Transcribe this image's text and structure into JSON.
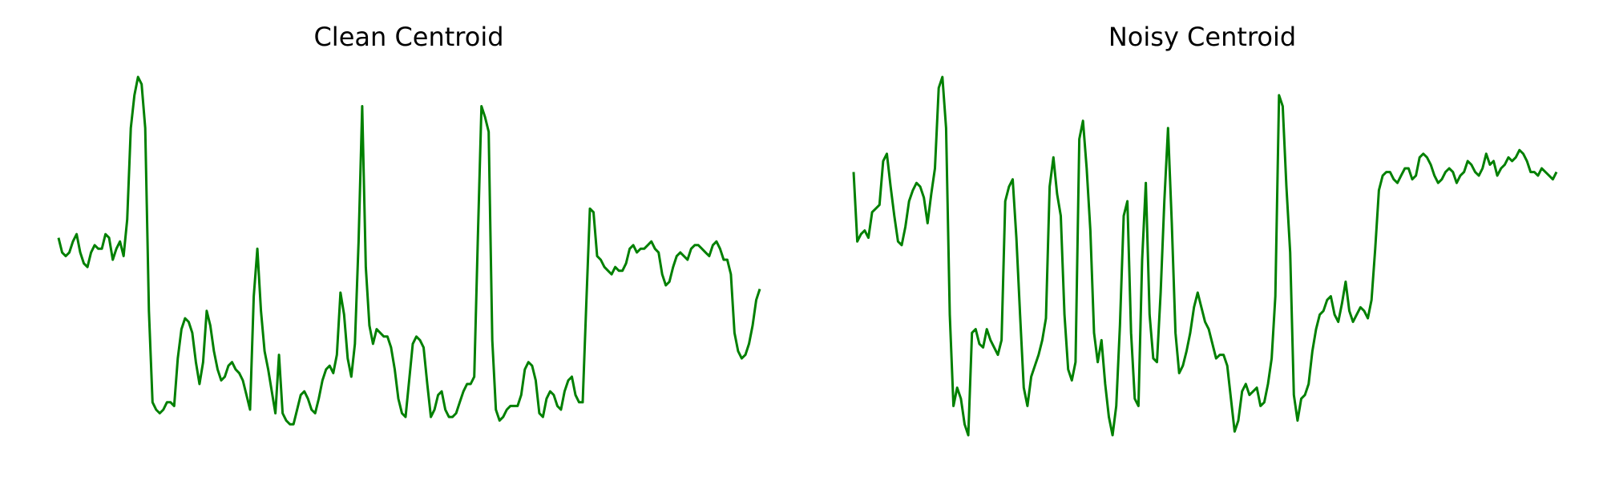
{
  "chart_data": [
    {
      "type": "line",
      "title": "Clean Centroid",
      "xlabel": "",
      "ylabel": "",
      "axes_visible": false,
      "grid": false,
      "color": "#008000",
      "ylim": [
        0,
        1
      ],
      "values": [
        0.56,
        0.52,
        0.51,
        0.52,
        0.55,
        0.57,
        0.52,
        0.49,
        0.48,
        0.52,
        0.54,
        0.53,
        0.53,
        0.57,
        0.56,
        0.5,
        0.53,
        0.55,
        0.51,
        0.61,
        0.86,
        0.95,
        1.0,
        0.98,
        0.86,
        0.36,
        0.11,
        0.09,
        0.08,
        0.09,
        0.11,
        0.11,
        0.1,
        0.23,
        0.31,
        0.34,
        0.33,
        0.3,
        0.22,
        0.16,
        0.22,
        0.36,
        0.32,
        0.25,
        0.2,
        0.17,
        0.18,
        0.21,
        0.22,
        0.2,
        0.19,
        0.17,
        0.13,
        0.09,
        0.4,
        0.53,
        0.36,
        0.25,
        0.2,
        0.14,
        0.08,
        0.24,
        0.08,
        0.06,
        0.05,
        0.05,
        0.09,
        0.13,
        0.14,
        0.12,
        0.09,
        0.08,
        0.12,
        0.17,
        0.2,
        0.21,
        0.19,
        0.24,
        0.41,
        0.35,
        0.23,
        0.18,
        0.27,
        0.55,
        0.92,
        0.48,
        0.32,
        0.27,
        0.31,
        0.3,
        0.29,
        0.29,
        0.26,
        0.2,
        0.12,
        0.08,
        0.07,
        0.17,
        0.27,
        0.29,
        0.28,
        0.26,
        0.16,
        0.07,
        0.09,
        0.13,
        0.14,
        0.09,
        0.07,
        0.07,
        0.08,
        0.11,
        0.14,
        0.16,
        0.16,
        0.18,
        0.56,
        0.92,
        0.89,
        0.85,
        0.28,
        0.09,
        0.06,
        0.07,
        0.09,
        0.1,
        0.1,
        0.1,
        0.13,
        0.2,
        0.22,
        0.21,
        0.17,
        0.08,
        0.07,
        0.12,
        0.14,
        0.13,
        0.1,
        0.09,
        0.14,
        0.17,
        0.18,
        0.13,
        0.11,
        0.11,
        0.38,
        0.64,
        0.63,
        0.51,
        0.5,
        0.48,
        0.47,
        0.46,
        0.48,
        0.47,
        0.47,
        0.49,
        0.53,
        0.54,
        0.52,
        0.53,
        0.53,
        0.54,
        0.55,
        0.53,
        0.52,
        0.46,
        0.43,
        0.44,
        0.48,
        0.51,
        0.52,
        0.51,
        0.5,
        0.53,
        0.54,
        0.54,
        0.53,
        0.52,
        0.51,
        0.54,
        0.55,
        0.53,
        0.5,
        0.5,
        0.46,
        0.3,
        0.25,
        0.23,
        0.24,
        0.27,
        0.32,
        0.39,
        0.42
      ]
    },
    {
      "type": "line",
      "title": "Noisy Centroid",
      "xlabel": "",
      "ylabel": "",
      "axes_visible": false,
      "grid": false,
      "color": "#008000",
      "ylim": [
        0,
        1
      ],
      "values": [
        0.74,
        0.55,
        0.57,
        0.58,
        0.56,
        0.63,
        0.64,
        0.65,
        0.77,
        0.79,
        0.7,
        0.62,
        0.55,
        0.54,
        0.59,
        0.66,
        0.69,
        0.71,
        0.7,
        0.67,
        0.6,
        0.68,
        0.75,
        0.97,
        1.0,
        0.86,
        0.35,
        0.1,
        0.15,
        0.12,
        0.05,
        0.02,
        0.3,
        0.31,
        0.27,
        0.26,
        0.31,
        0.28,
        0.26,
        0.24,
        0.28,
        0.66,
        0.7,
        0.72,
        0.56,
        0.35,
        0.15,
        0.1,
        0.18,
        0.21,
        0.24,
        0.28,
        0.34,
        0.7,
        0.78,
        0.68,
        0.62,
        0.35,
        0.2,
        0.17,
        0.22,
        0.83,
        0.88,
        0.75,
        0.58,
        0.3,
        0.22,
        0.28,
        0.16,
        0.07,
        0.02,
        0.1,
        0.32,
        0.62,
        0.66,
        0.3,
        0.12,
        0.1,
        0.5,
        0.71,
        0.35,
        0.23,
        0.22,
        0.41,
        0.66,
        0.86,
        0.6,
        0.3,
        0.19,
        0.21,
        0.25,
        0.3,
        0.37,
        0.41,
        0.37,
        0.33,
        0.31,
        0.27,
        0.23,
        0.24,
        0.24,
        0.21,
        0.12,
        0.03,
        0.06,
        0.14,
        0.16,
        0.13,
        0.14,
        0.15,
        0.1,
        0.11,
        0.16,
        0.23,
        0.4,
        0.95,
        0.92,
        0.7,
        0.52,
        0.13,
        0.06,
        0.12,
        0.13,
        0.16,
        0.25,
        0.31,
        0.35,
        0.36,
        0.39,
        0.4,
        0.35,
        0.33,
        0.38,
        0.44,
        0.36,
        0.33,
        0.35,
        0.37,
        0.36,
        0.34,
        0.39,
        0.53,
        0.69,
        0.73,
        0.74,
        0.74,
        0.72,
        0.71,
        0.73,
        0.75,
        0.75,
        0.72,
        0.73,
        0.78,
        0.79,
        0.78,
        0.76,
        0.73,
        0.71,
        0.72,
        0.74,
        0.75,
        0.74,
        0.71,
        0.73,
        0.74,
        0.77,
        0.76,
        0.74,
        0.73,
        0.75,
        0.79,
        0.76,
        0.77,
        0.73,
        0.75,
        0.76,
        0.78,
        0.77,
        0.78,
        0.8,
        0.79,
        0.77,
        0.74,
        0.74,
        0.73,
        0.75,
        0.74,
        0.73,
        0.72,
        0.74
      ]
    }
  ]
}
